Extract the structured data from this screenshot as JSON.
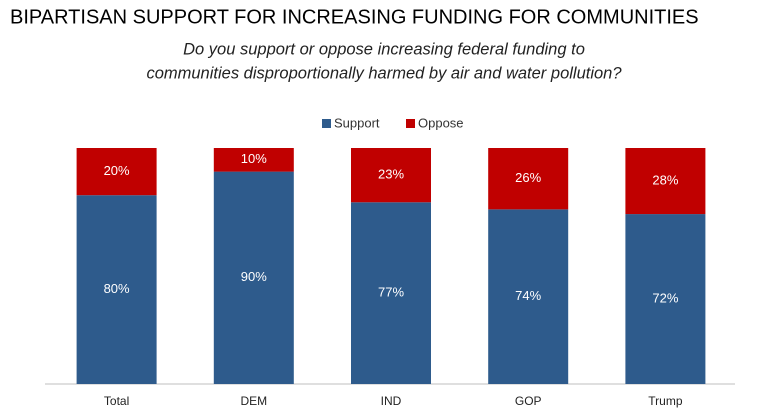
{
  "chart_data": {
    "type": "stacked-bar",
    "title": "BIPARTISAN SUPPORT FOR INCREASING FUNDING FOR COMMUNITIES",
    "subtitle": [
      "Do you support or oppose increasing federal funding to",
      "communities disproportionally harmed by air and water pollution?"
    ],
    "categories": [
      "Total",
      "DEM",
      "IND",
      "GOP",
      "Trump"
    ],
    "series": [
      {
        "name": "Support",
        "color": "#2e5b8c",
        "values": [
          80,
          90,
          77,
          74,
          72
        ],
        "value_labels": [
          "80%",
          "90%",
          "77%",
          "74%",
          "72%"
        ]
      },
      {
        "name": "Oppose",
        "color": "#c00000",
        "values": [
          20,
          10,
          23,
          26,
          28
        ],
        "value_labels": [
          "20%",
          "10%",
          "23%",
          "26%",
          "28%"
        ]
      }
    ],
    "legend": "top"
  }
}
